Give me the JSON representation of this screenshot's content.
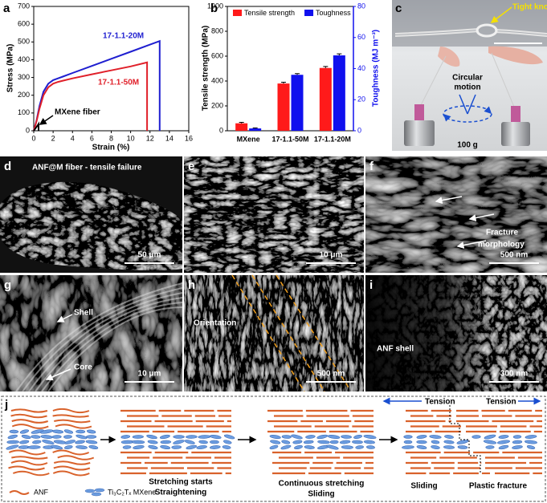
{
  "chart_data": [
    {
      "type": "line",
      "letter": "a",
      "xlabel": "Strain (%)",
      "ylabel": "Stress (MPa)",
      "xlim": [
        0,
        16
      ],
      "xticks": [
        0,
        2,
        4,
        6,
        8,
        10,
        12,
        14,
        16
      ],
      "ylim": [
        0,
        700
      ],
      "yticks": [
        0,
        100,
        200,
        300,
        400,
        500,
        600,
        700
      ],
      "series": [
        {
          "name": "17-1.1-20M",
          "color": "#1f1fd0",
          "x": [
            0,
            0.3,
            0.6,
            1,
            1.5,
            2,
            2.5,
            3,
            4,
            6,
            8,
            10,
            12,
            13,
            13
          ],
          "values": [
            0,
            60,
            140,
            220,
            265,
            285,
            295,
            305,
            325,
            365,
            405,
            445,
            485,
            505,
            0
          ]
        },
        {
          "name": "17-1.1-50M",
          "color": "#e0202a",
          "x": [
            0,
            0.3,
            0.6,
            1,
            1.5,
            2,
            2.5,
            3,
            4,
            6,
            8,
            10,
            11.7,
            11.7
          ],
          "values": [
            0,
            55,
            125,
            200,
            245,
            265,
            275,
            282,
            295,
            318,
            340,
            362,
            385,
            0
          ]
        },
        {
          "name": "MXene fiber",
          "color": "#000000",
          "x": [
            0,
            0.2,
            0.4,
            0.5,
            0.5
          ],
          "values": [
            0,
            15,
            30,
            38,
            0
          ]
        }
      ]
    },
    {
      "type": "bar",
      "letter": "b",
      "categories": [
        "MXene",
        "17-1.1-50M",
        "17-1.1-20M"
      ],
      "ylabel": "Tensile strength (MPa)",
      "y2label": "Toughness (MJ m⁻³)",
      "ylim": [
        0,
        1000
      ],
      "yticks": [
        0,
        200,
        400,
        600,
        800,
        1000
      ],
      "y2lim": [
        0,
        80
      ],
      "y2ticks": [
        0,
        20,
        40,
        60,
        80
      ],
      "legend": "top",
      "series": [
        {
          "name": "Tensile strength",
          "color": "#ff1a1a",
          "values": [
            60,
            380,
            505
          ],
          "errors": [
            8,
            10,
            12
          ]
        },
        {
          "name": "Toughness",
          "color": "#1010ee",
          "axis": "y2",
          "values": [
            1.5,
            36,
            48.5
          ],
          "errors": [
            0.3,
            0.8,
            1
          ]
        }
      ]
    }
  ],
  "photo": {
    "letter": "c",
    "knot": "Tight knot",
    "motion": [
      "Circular",
      "motion"
    ],
    "weight": "100 g"
  },
  "sem": [
    {
      "letter": "d",
      "labels": [
        "ANF@M fiber - tensile failure"
      ],
      "scale": "50 μm"
    },
    {
      "letter": "e",
      "labels": [],
      "scale": "10 μm"
    },
    {
      "letter": "f",
      "labels": [
        "Fracture",
        "morphology"
      ],
      "scale": "500 nm"
    },
    {
      "letter": "g",
      "labels": [
        "Shell",
        "Core"
      ],
      "scale": "10 μm"
    },
    {
      "letter": "h",
      "labels": [
        "Orientation"
      ],
      "scale": "500 nm"
    },
    {
      "letter": "i",
      "labels": [
        "ANF shell"
      ],
      "scale": "300 nm"
    }
  ],
  "schematic": {
    "letter": "j",
    "legend": [
      "ANF",
      "Ti₃C₂Tₓ MXene"
    ],
    "stage_labels": [
      "Stretching starts",
      "Straightening",
      "Continuous stretching",
      "Sliding",
      "Sliding",
      "Plastic fracture"
    ],
    "tension": [
      "Tension",
      "Tension"
    ]
  }
}
